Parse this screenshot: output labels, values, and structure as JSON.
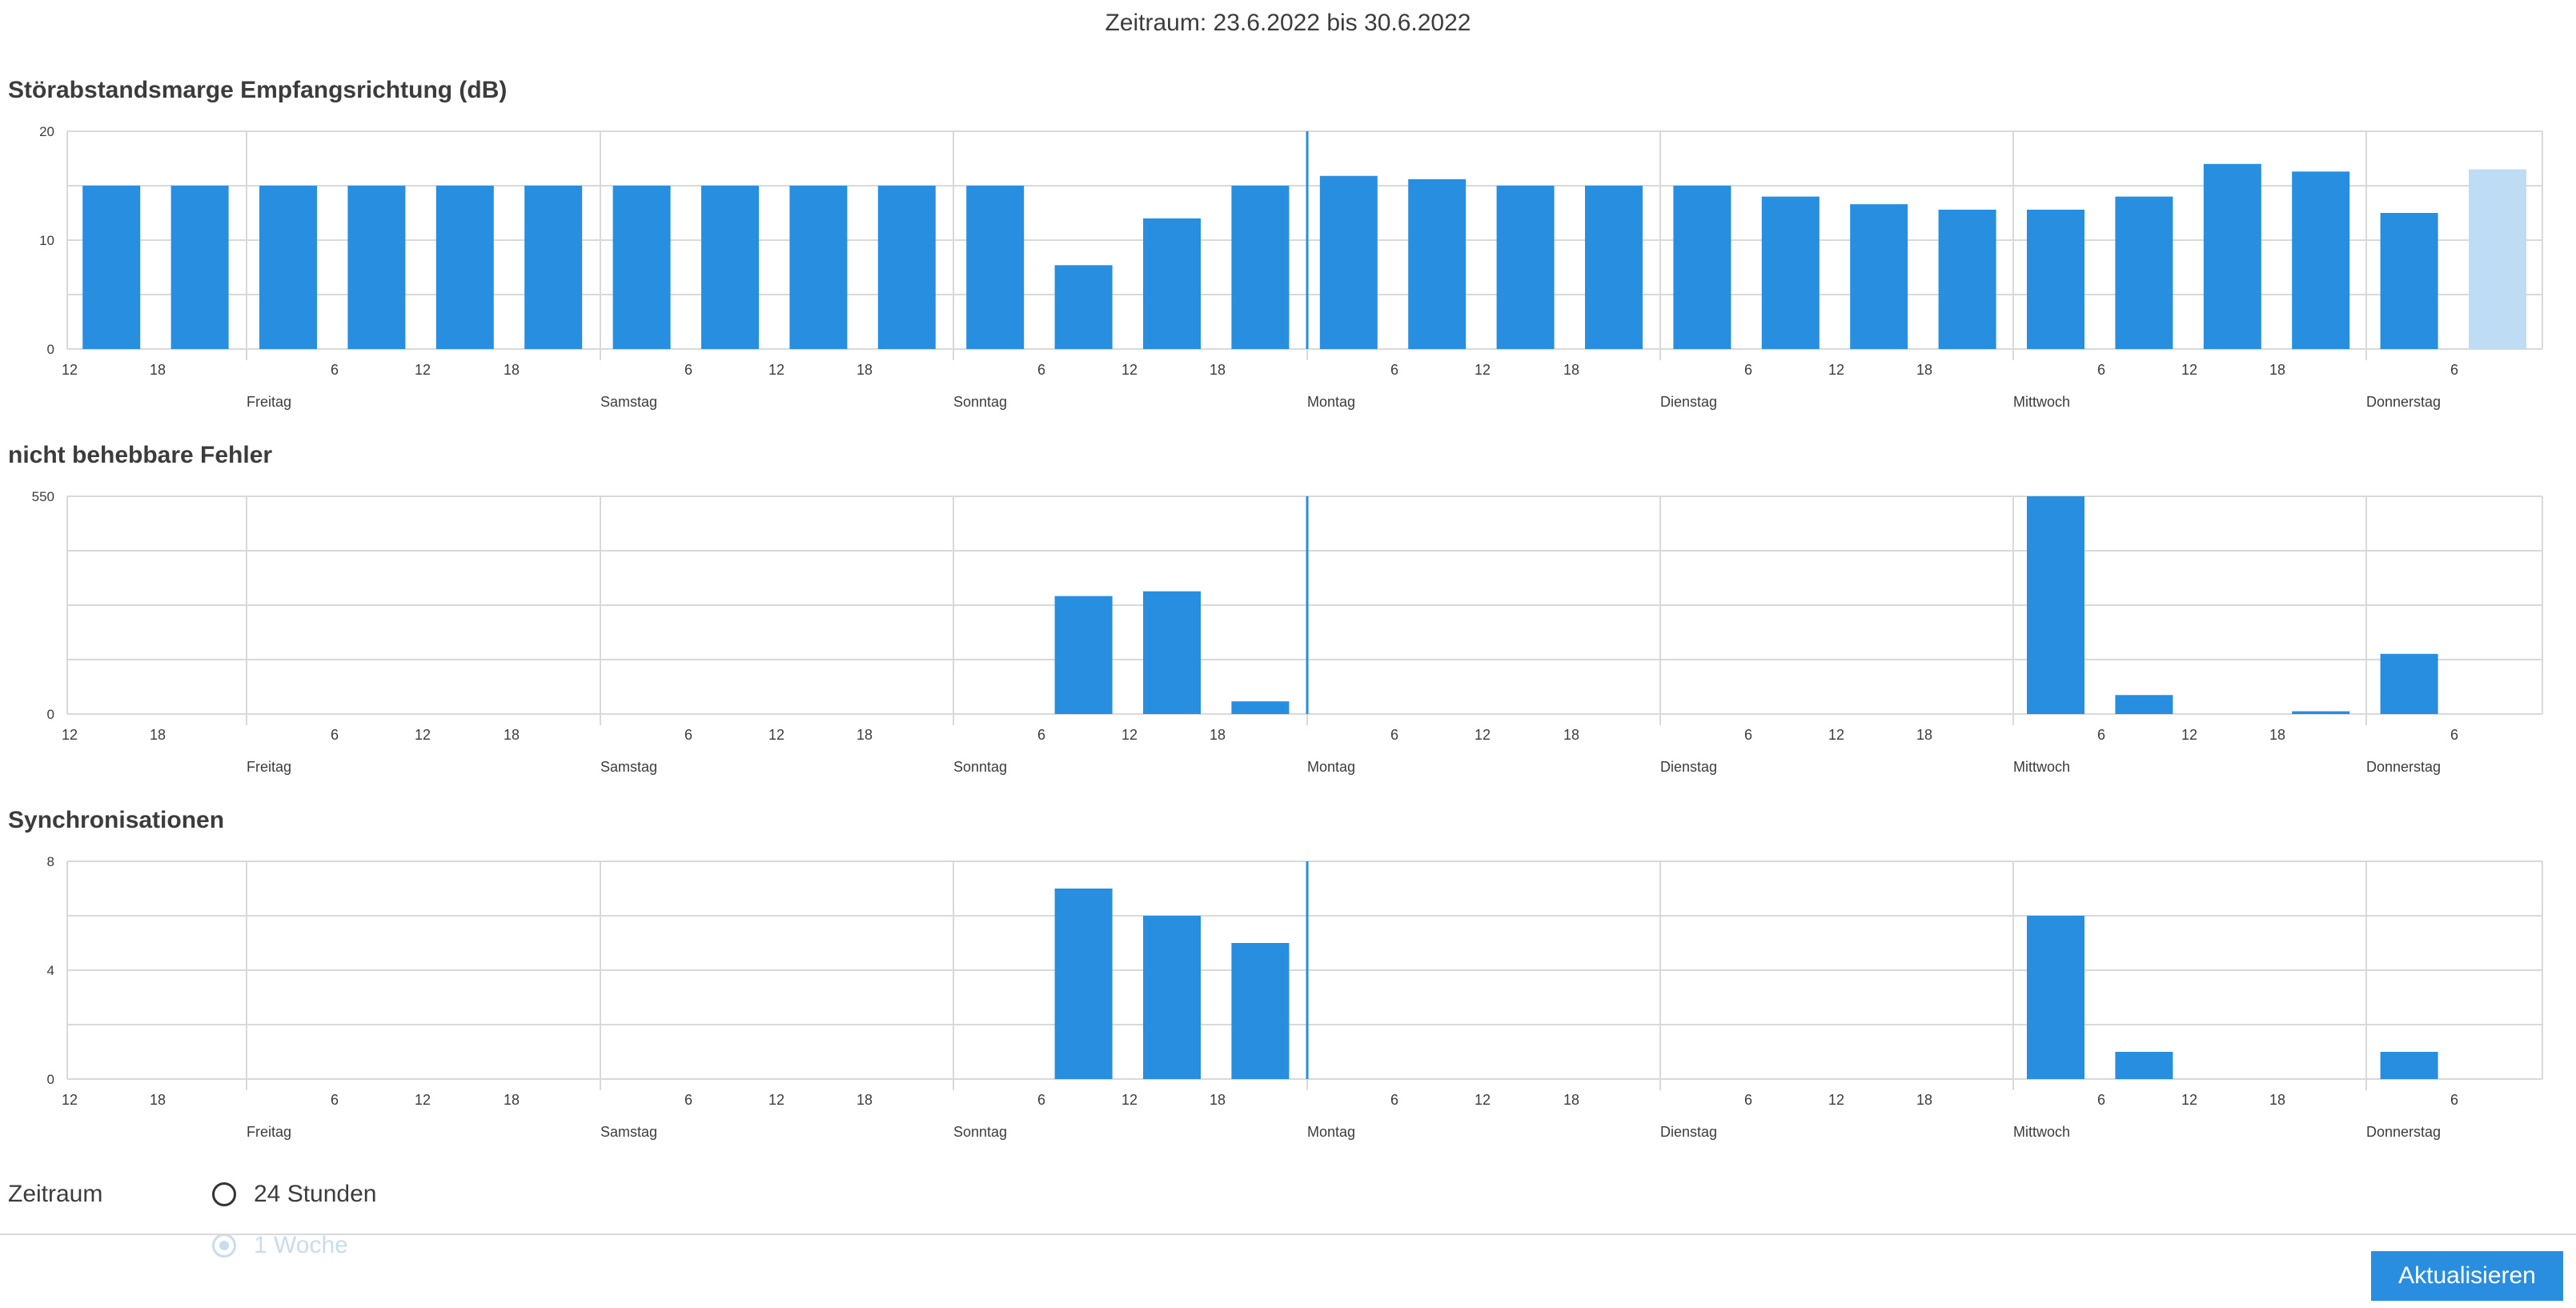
{
  "period_title": "Zeitraum: 23.6.2022 bis 30.6.2022",
  "colors": {
    "bar": "#288ee0",
    "bar_light": "#bedcf3",
    "grid": "#d9d9d9",
    "marker": "#288ee0"
  },
  "chart_data": [
    {
      "type": "bar",
      "title": "Störabstandsmarge Empfangsrichtung (dB)",
      "x_ticks": [
        "12",
        "18",
        "6",
        "12",
        "18",
        "6",
        "12",
        "18",
        "6",
        "12",
        "18",
        "6",
        "12",
        "18",
        "6",
        "12",
        "18",
        "6",
        "12",
        "18",
        "6"
      ],
      "day_labels": [
        "Freitag",
        "Samstag",
        "Sonntag",
        "Montag",
        "Dienstag",
        "Mittwoch",
        "Donnerstag"
      ],
      "y_ticks": [
        "0",
        "10",
        "20"
      ],
      "ylim": [
        0,
        20
      ],
      "values": [
        15,
        15,
        15,
        15,
        15,
        15,
        15,
        15,
        15,
        15,
        15,
        7.7,
        12,
        15,
        15.9,
        15.6,
        15,
        15,
        15,
        14,
        13.3,
        12.8,
        12.8,
        14,
        17,
        16.3,
        12.5,
        16.5
      ],
      "highlighted_last": true,
      "grid": true
    },
    {
      "type": "bar",
      "title": "nicht behebbare Fehler",
      "x_ticks": [
        "12",
        "18",
        "6",
        "12",
        "18",
        "6",
        "12",
        "18",
        "6",
        "12",
        "18",
        "6",
        "12",
        "18",
        "6",
        "12",
        "18",
        "6",
        "12",
        "18",
        "6"
      ],
      "day_labels": [
        "Freitag",
        "Samstag",
        "Sonntag",
        "Montag",
        "Dienstag",
        "Mittwoch",
        "Donnerstag"
      ],
      "y_ticks": [
        "0",
        "550"
      ],
      "ylim": [
        0,
        550
      ],
      "values": [
        0,
        0,
        0,
        0,
        0,
        0,
        0,
        0,
        0,
        0,
        0,
        298,
        310,
        32,
        0,
        0,
        0,
        0,
        0,
        0,
        0,
        0,
        550,
        48,
        0,
        7,
        152,
        0
      ],
      "grid": true
    },
    {
      "type": "bar",
      "title": "Synchronisationen",
      "x_ticks": [
        "12",
        "18",
        "6",
        "12",
        "18",
        "6",
        "12",
        "18",
        "6",
        "12",
        "18",
        "6",
        "12",
        "18",
        "6",
        "12",
        "18",
        "6",
        "12",
        "18",
        "6"
      ],
      "day_labels": [
        "Freitag",
        "Samstag",
        "Sonntag",
        "Montag",
        "Dienstag",
        "Mittwoch",
        "Donnerstag"
      ],
      "y_ticks": [
        "0",
        "4",
        "8"
      ],
      "ylim": [
        0,
        8
      ],
      "values": [
        0,
        0,
        0,
        0,
        0,
        0,
        0,
        0,
        0,
        0,
        0,
        7,
        6,
        5,
        0,
        0,
        0,
        0,
        0,
        0,
        0,
        0,
        6,
        1,
        0,
        0,
        1,
        0
      ],
      "grid": true
    }
  ],
  "controls": {
    "period_label": "Zeitraum",
    "option_24h": "24 Stunden",
    "option_1w": "1 Woche",
    "selected": "1 Woche",
    "update_button": "Aktualisieren"
  }
}
